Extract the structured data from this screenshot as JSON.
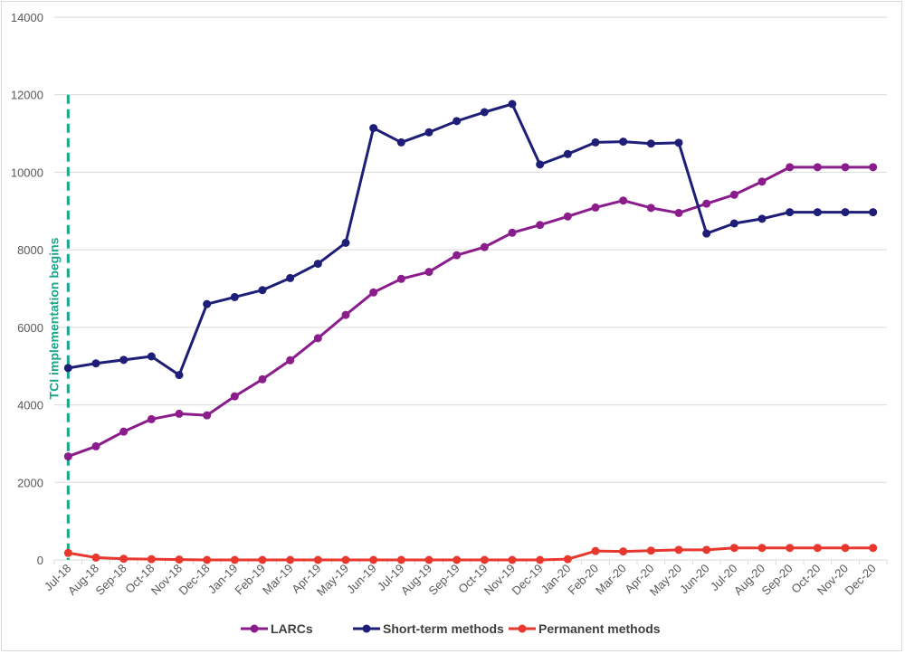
{
  "chart_data": {
    "type": "line",
    "title": "",
    "xlabel": "",
    "ylabel": "",
    "ylim": [
      0,
      14000
    ],
    "yticks": [
      0,
      2000,
      4000,
      6000,
      8000,
      10000,
      12000,
      14000
    ],
    "grid": true,
    "legend_position": "bottom",
    "categories": [
      "Jul-18",
      "Aug-18",
      "Sep-18",
      "Oct-18",
      "Nov-18",
      "Dec-18",
      "Jan-19",
      "Feb-19",
      "Mar-19",
      "Apr-19",
      "May-19",
      "Jun-19",
      "Jul-19",
      "Aug-19",
      "Sep-19",
      "Oct-19",
      "Nov-19",
      "Dec-19",
      "Jan-20",
      "Feb-20",
      "Mar-20",
      "Apr-20",
      "May-20",
      "Jun-20",
      "Jul-20",
      "Aug-20",
      "Sep-20",
      "Oct-20",
      "Nov-20",
      "Dec-20"
    ],
    "series": [
      {
        "name": "LARCs",
        "color": "#8b1c8b",
        "values": [
          2670,
          2930,
          3310,
          3630,
          3770,
          3730,
          4220,
          4660,
          5150,
          5720,
          6320,
          6900,
          7250,
          7430,
          7860,
          8070,
          8440,
          8640,
          8860,
          9090,
          9270,
          9080,
          8950,
          9190,
          9420,
          9760,
          10130,
          10130,
          10130,
          10130
        ]
      },
      {
        "name": "Short-term methods",
        "color": "#1e1e78",
        "values": [
          4950,
          5070,
          5160,
          5250,
          4770,
          6600,
          6780,
          6960,
          7270,
          7640,
          8180,
          11140,
          10770,
          11030,
          11320,
          11550,
          11760,
          10200,
          10470,
          10770,
          10790,
          10740,
          10760,
          8420,
          8680,
          8800,
          8970,
          8970,
          8970,
          8970
        ]
      },
      {
        "name": "Permanent methods",
        "color": "#e8372c",
        "values": [
          180,
          60,
          30,
          20,
          10,
          0,
          0,
          0,
          0,
          0,
          0,
          0,
          0,
          0,
          0,
          0,
          0,
          0,
          20,
          230,
          220,
          240,
          260,
          260,
          310,
          310,
          310,
          310,
          310,
          310
        ]
      }
    ],
    "annotations": [
      {
        "text": "TCI implementation begins",
        "at_category": "Jul-18",
        "from_value": 0,
        "to_value": 12000,
        "color": "#17a88c",
        "style": "dashed"
      }
    ]
  }
}
